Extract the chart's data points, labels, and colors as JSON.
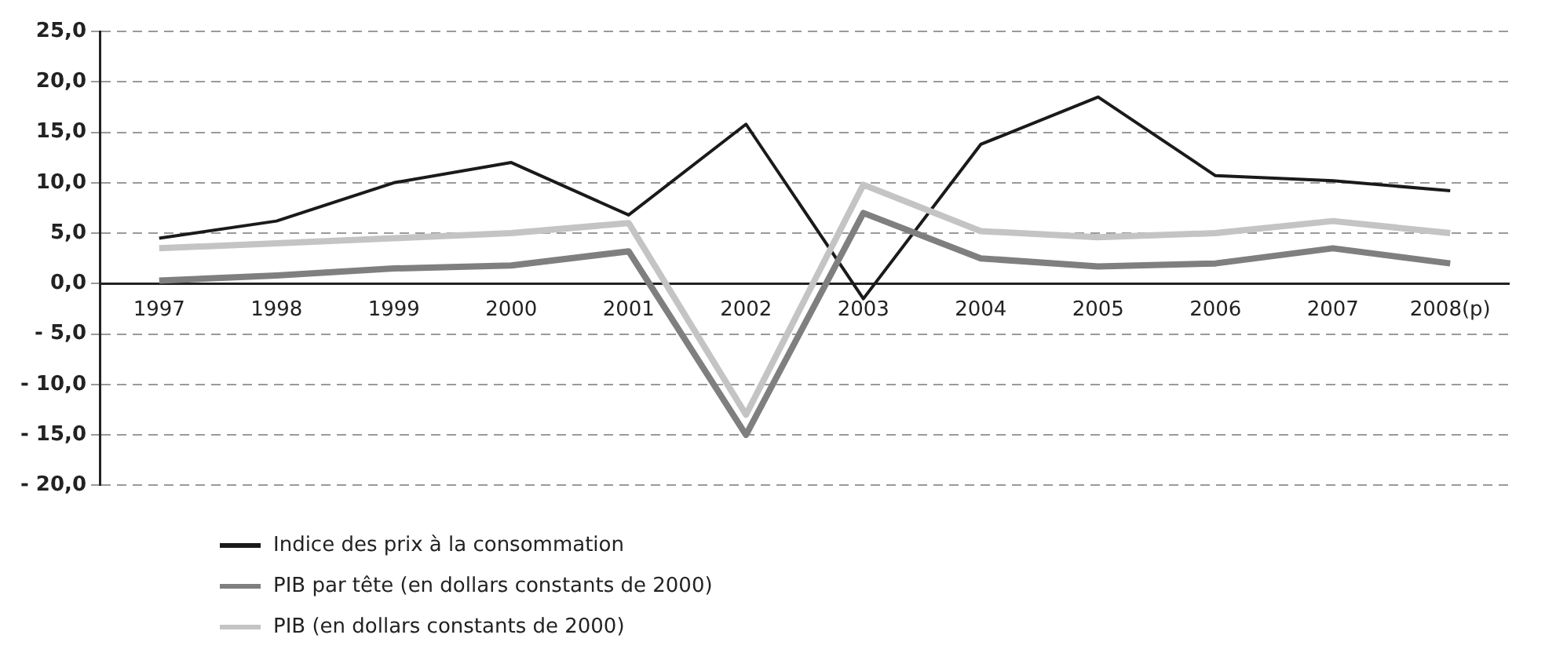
{
  "chart_data": {
    "type": "line",
    "categories": [
      "1997",
      "1998",
      "1999",
      "2000",
      "2001",
      "2002",
      "2003",
      "2004",
      "2005",
      "2006",
      "2007",
      "2008(p)"
    ],
    "series": [
      {
        "name": "Indice des prix à la consommation",
        "color": "#1a1a1a",
        "values": [
          4.5,
          6.2,
          10,
          12,
          6.8,
          15.8,
          -1.5,
          13.8,
          18.5,
          10.7,
          10.2,
          9.2
        ]
      },
      {
        "name": "PIB par tête (en dollars constants de 2000)",
        "color": "#7f7f7f",
        "values": [
          0.3,
          0.8,
          1.5,
          1.8,
          3.2,
          -15,
          7,
          2.5,
          1.7,
          2,
          3.5,
          2
        ]
      },
      {
        "name": "PIB (en dollars constants de 2000)",
        "color": "#c4c4c4",
        "values": [
          3.5,
          4,
          4.5,
          5,
          6,
          -13,
          9.8,
          5.2,
          4.6,
          5,
          6.2,
          5
        ]
      }
    ],
    "ylim": [
      -20,
      25
    ],
    "yticks": [
      {
        "value": -20,
        "label": "- 20,0"
      },
      {
        "value": -15,
        "label": "- 15,0"
      },
      {
        "value": -10,
        "label": "- 10,0"
      },
      {
        "value": -5,
        "label": "- 5,0"
      },
      {
        "value": 0,
        "label": "0,0"
      },
      {
        "value": 5,
        "label": "5,0"
      },
      {
        "value": 10,
        "label": "10,0"
      },
      {
        "value": 15,
        "label": "15,0"
      },
      {
        "value": 20,
        "label": "20,0"
      },
      {
        "value": 25,
        "label": "25,0"
      }
    ],
    "grid": "y",
    "legend": "bottom left",
    "marker": "none",
    "line_style": "solid"
  }
}
